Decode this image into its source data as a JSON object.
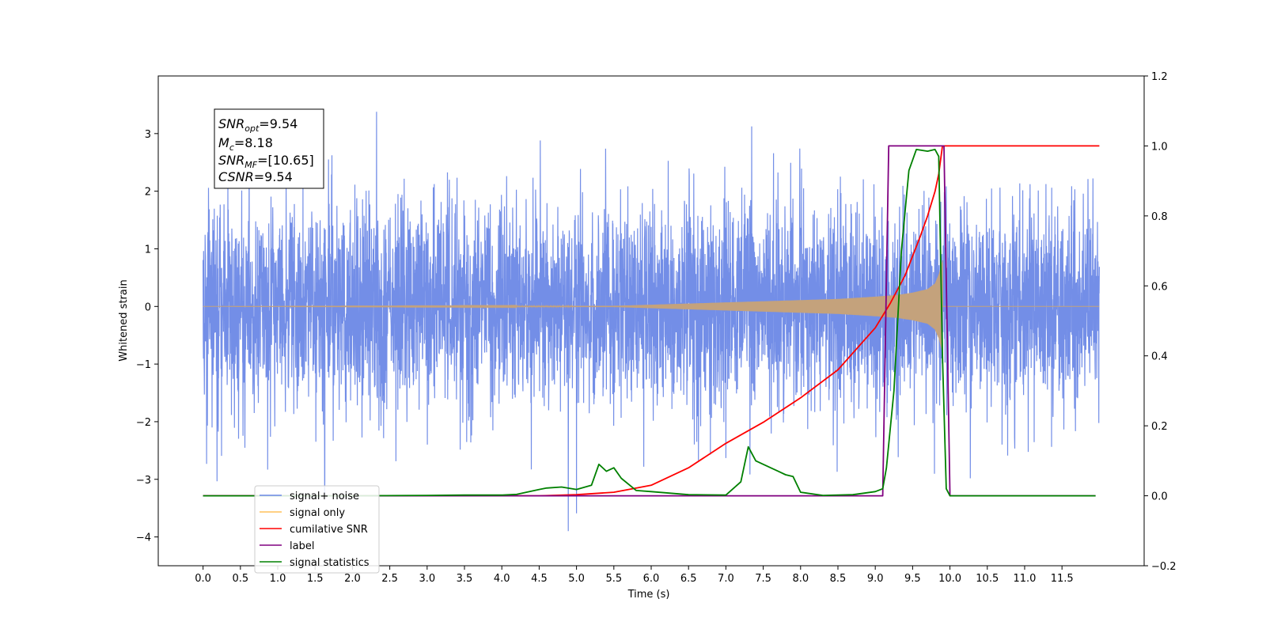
{
  "chart_data": {
    "type": "line",
    "x_axis": {
      "label": "Time (s)",
      "range": [
        -0.6,
        12.6
      ],
      "ticks": [
        0.0,
        0.5,
        1.0,
        1.5,
        2.0,
        2.5,
        3.0,
        3.5,
        4.0,
        4.5,
        5.0,
        5.5,
        6.0,
        6.5,
        7.0,
        7.5,
        8.0,
        8.5,
        9.0,
        9.5,
        10.0,
        10.5,
        11.0,
        11.5
      ],
      "tick_labels": [
        "0.0",
        "0.5",
        "1.0",
        "1.5",
        "2.0",
        "2.5",
        "3.0",
        "3.5",
        "4.0",
        "4.5",
        "5.0",
        "5.5",
        "6.0",
        "6.5",
        "7.0",
        "7.5",
        "8.0",
        "8.5",
        "9.0",
        "9.5",
        "10.0",
        "10.5",
        "11.0",
        "11.5"
      ]
    },
    "y_axis_left": {
      "label": "Whitened strain",
      "range": [
        -4.5,
        4.0
      ],
      "ticks": [
        3,
        2,
        1,
        0,
        -1,
        -2,
        -3,
        -4
      ],
      "tick_labels": [
        "3",
        "2",
        "1",
        "0",
        "−1",
        "−2",
        "−3",
        "−4"
      ]
    },
    "y_axis_right": {
      "label": "",
      "range": [
        -0.2,
        1.2
      ],
      "ticks": [
        1.2,
        1.0,
        0.8,
        0.6,
        0.4,
        0.2,
        0.0,
        -0.2
      ],
      "tick_labels": [
        "1.2",
        "1.0",
        "0.8",
        "0.6",
        "0.4",
        "0.2",
        "0.0",
        "−0.2"
      ]
    },
    "info_box": {
      "snr_opt": {
        "sym": "SNR",
        "sub": "opt",
        "value": "=9.54"
      },
      "mc": {
        "sym": "M",
        "sub": "c",
        "value": "=8.18"
      },
      "snr_mf": {
        "sym": "SNR",
        "sub": "MF",
        "value": "=[10.65]"
      },
      "csnr": {
        "sym": "CSNR",
        "sub": "",
        "value": "=9.54"
      }
    },
    "legend": {
      "placement": "lower-left",
      "entries": [
        {
          "label": "signal+ noise",
          "color": "#6b88e6"
        },
        {
          "label": "signal only",
          "color": "#ffc05a"
        },
        {
          "label": "cumilative SNR",
          "color": "#ff0000"
        },
        {
          "label": "label",
          "color": "#800080"
        },
        {
          "label": "signal statistics",
          "color": "#008000"
        }
      ]
    },
    "series": [
      {
        "name": "signal+ noise",
        "axis": "left",
        "color": "#6b88e6",
        "kind": "noise",
        "t_start": 0.0,
        "t_end": 12.0,
        "amplitude": 1.4
      },
      {
        "name": "signal only",
        "axis": "left",
        "color": "#c4a27c",
        "kind": "chirp",
        "t_start": 0.0,
        "t_merge": 9.9,
        "t_end": 12.0,
        "envelope": {
          "t": [
            0.0,
            5.5,
            6.0,
            6.5,
            7.0,
            7.5,
            8.0,
            8.5,
            9.0,
            9.3,
            9.5,
            9.7,
            9.8,
            9.85,
            9.9
          ],
          "a": [
            0.0,
            0.01,
            0.03,
            0.05,
            0.07,
            0.09,
            0.11,
            0.13,
            0.17,
            0.2,
            0.24,
            0.3,
            0.4,
            0.55,
            0.8
          ]
        }
      },
      {
        "name": "cumilative SNR",
        "axis": "right",
        "color": "#ff0000",
        "t": [
          0.0,
          4.5,
          5.0,
          5.5,
          6.0,
          6.5,
          7.0,
          7.5,
          8.0,
          8.5,
          9.0,
          9.2,
          9.4,
          9.6,
          9.7,
          9.8,
          9.85,
          9.9,
          9.91,
          12.0
        ],
        "y": [
          0.0,
          0.0,
          0.003,
          0.01,
          0.03,
          0.08,
          0.15,
          0.21,
          0.28,
          0.36,
          0.48,
          0.55,
          0.63,
          0.74,
          0.8,
          0.87,
          0.92,
          1.0,
          1.0,
          1.0
        ]
      },
      {
        "name": "label",
        "axis": "right",
        "color": "#800080",
        "t": [
          0.0,
          9.1,
          9.18,
          9.92,
          10.0,
          11.95
        ],
        "y": [
          0.0,
          0.0,
          1.0,
          1.0,
          0.0,
          0.0
        ]
      },
      {
        "name": "signal statistics",
        "axis": "right",
        "color": "#008000",
        "t": [
          0.0,
          1.0,
          2.0,
          3.0,
          3.5,
          4.0,
          4.2,
          4.5,
          4.6,
          4.8,
          5.0,
          5.2,
          5.3,
          5.4,
          5.5,
          5.6,
          5.8,
          6.0,
          6.5,
          7.0,
          7.2,
          7.3,
          7.4,
          7.5,
          7.6,
          7.7,
          7.8,
          7.9,
          8.0,
          8.3,
          8.7,
          9.0,
          9.1,
          9.15,
          9.25,
          9.35,
          9.45,
          9.55,
          9.7,
          9.8,
          9.85,
          9.9,
          9.95,
          10.0,
          11.95
        ],
        "y": [
          0.0,
          0.0,
          0.0,
          0.001,
          0.002,
          0.002,
          0.004,
          0.018,
          0.022,
          0.025,
          0.018,
          0.03,
          0.09,
          0.07,
          0.08,
          0.05,
          0.015,
          0.012,
          0.003,
          0.002,
          0.04,
          0.14,
          0.1,
          0.09,
          0.08,
          0.07,
          0.06,
          0.055,
          0.01,
          0.001,
          0.003,
          0.012,
          0.02,
          0.08,
          0.3,
          0.7,
          0.93,
          0.99,
          0.985,
          0.99,
          0.97,
          0.4,
          0.02,
          0.0,
          0.0
        ]
      }
    ]
  }
}
